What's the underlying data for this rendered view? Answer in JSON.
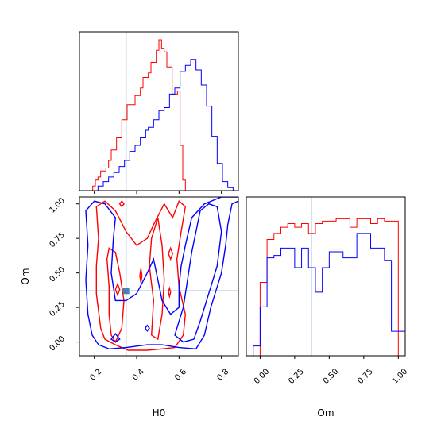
{
  "chart_data": {
    "type": "corner",
    "parameters": [
      "H0",
      "Om"
    ],
    "truths": {
      "H0": 0.35,
      "Om": 0.37
    },
    "truth_color": "#4682b4",
    "series": [
      {
        "color": "#ff0000"
      },
      {
        "color": "#0000ff"
      }
    ],
    "hist_H0": {
      "xlim": [
        0.13,
        0.88
      ],
      "xticks": [
        0.2,
        0.4,
        0.6,
        0.8
      ],
      "bin_edges": [
        0.13,
        0.1425,
        0.155,
        0.1675,
        0.18,
        0.1925,
        0.205,
        0.2175,
        0.23,
        0.2425,
        0.255,
        0.2675,
        0.28,
        0.2925,
        0.305,
        0.3175,
        0.33,
        0.3425,
        0.355,
        0.3675,
        0.38,
        0.3925,
        0.405,
        0.4175,
        0.43,
        0.4425,
        0.455,
        0.4675,
        0.48,
        0.4925,
        0.505,
        0.5175,
        0.53,
        0.5425,
        0.555,
        0.5675,
        0.58,
        0.5925,
        0.605,
        0.6175,
        0.63,
        0.6425,
        0.655,
        0.6675,
        0.68,
        0.6925,
        0.705,
        0.7175,
        0.73,
        0.7425,
        0.755,
        0.7675,
        0.78,
        0.7925,
        0.805,
        0.8175,
        0.83,
        0.8425,
        0.855,
        0.8675,
        0.88
      ],
      "red": [
        0,
        0,
        0,
        0,
        0,
        0.03,
        0.07,
        0.09,
        0.13,
        0.13,
        0.15,
        0.2,
        0.27,
        0.27,
        0.35,
        0.35,
        0.47,
        0.47,
        0.57,
        0.57,
        0.57,
        0.63,
        0.63,
        0.68,
        0.75,
        0.75,
        0.78,
        0.85,
        0.85,
        0.93,
        1.0,
        0.94,
        0.92,
        0.82,
        0.82,
        0.64,
        0.64,
        0.66,
        0.3,
        0.07,
        0,
        0,
        0,
        0,
        0,
        0,
        0,
        0,
        0,
        0,
        0,
        0,
        0,
        0,
        0,
        0,
        0,
        0,
        0,
        0
      ],
      "blue": [
        0,
        0,
        0,
        0,
        0,
        0,
        0,
        0.03,
        0.03,
        0.06,
        0.06,
        0.09,
        0.09,
        0.12,
        0.12,
        0.16,
        0.16,
        0.2,
        0.2,
        0.26,
        0.26,
        0.3,
        0.3,
        0.35,
        0.35,
        0.4,
        0.42,
        0.42,
        0.47,
        0.47,
        0.53,
        0.53,
        0.55,
        0.55,
        0.64,
        0.64,
        0.68,
        0.68,
        0.79,
        0.79,
        0.83,
        0.83,
        0.87,
        0.87,
        0.8,
        0.8,
        0.7,
        0.7,
        0.56,
        0.56,
        0.36,
        0.36,
        0.18,
        0.18,
        0.06,
        0.06,
        0.02,
        0.02,
        0,
        0
      ]
    },
    "hist_Om": {
      "xlim": [
        -0.1,
        1.05
      ],
      "xticks": [
        0.0,
        0.25,
        0.5,
        0.75,
        1.0
      ],
      "xtick_labels": [
        "0.00",
        "0.25",
        "0.50",
        "0.75",
        "1.00"
      ],
      "bin_edges": [
        -0.05,
        0.0,
        0.05,
        0.1,
        0.15,
        0.2,
        0.25,
        0.3,
        0.35,
        0.4,
        0.45,
        0.5,
        0.55,
        0.6,
        0.65,
        0.7,
        0.75,
        0.8,
        0.85,
        0.9,
        0.95,
        1.0,
        1.05
      ],
      "red": [
        0,
        0.6,
        0.95,
        1.0,
        1.05,
        1.08,
        1.05,
        1.08,
        1.0,
        1.08,
        1.1,
        1.1,
        1.12,
        1.12,
        1.05,
        1.12,
        1.12,
        1.08,
        1.12,
        1.1,
        1.1,
        0
      ],
      "blue": [
        0.08,
        0.4,
        0.8,
        0.82,
        0.88,
        0.88,
        0.72,
        0.88,
        0.72,
        0.52,
        0.72,
        0.85,
        0.85,
        0.8,
        0.8,
        1.0,
        1.0,
        0.88,
        0.88,
        0.78,
        0.2,
        0.2
      ]
    },
    "contour_panel": {
      "xlim": [
        0.13,
        0.88
      ],
      "ylim": [
        -0.1,
        1.05
      ],
      "xticks": [
        0.2,
        0.4,
        0.6,
        0.8
      ],
      "yticks": [
        0.0,
        0.25,
        0.5,
        0.75,
        1.0
      ],
      "ytick_labels": [
        "0.00",
        "0.25",
        "0.50",
        "0.75",
        "1.00"
      ],
      "red_contours": [
        [
          [
            0.21,
            0.98
          ],
          [
            0.22,
            0.75
          ],
          [
            0.21,
            0.55
          ],
          [
            0.21,
            0.35
          ],
          [
            0.23,
            0.1
          ],
          [
            0.25,
            0.02
          ],
          [
            0.3,
            -0.02
          ],
          [
            0.36,
            -0.06
          ],
          [
            0.45,
            -0.06
          ],
          [
            0.52,
            -0.05
          ],
          [
            0.58,
            -0.04
          ],
          [
            0.62,
            0.05
          ],
          [
            0.63,
            0.2
          ],
          [
            0.6,
            0.4
          ],
          [
            0.59,
            0.6
          ],
          [
            0.61,
            0.8
          ],
          [
            0.63,
            0.98
          ],
          [
            0.6,
            1.02
          ],
          [
            0.57,
            0.9
          ],
          [
            0.53,
            1.0
          ],
          [
            0.48,
            0.85
          ],
          [
            0.45,
            0.75
          ],
          [
            0.4,
            0.7
          ],
          [
            0.35,
            0.8
          ],
          [
            0.3,
            0.95
          ],
          [
            0.25,
            1.02
          ],
          [
            0.21,
            0.98
          ]
        ],
        [
          [
            0.26,
            0.6
          ],
          [
            0.27,
            0.4
          ],
          [
            0.27,
            0.2
          ],
          [
            0.28,
            0.05
          ],
          [
            0.3,
            0.0
          ],
          [
            0.33,
            0.1
          ],
          [
            0.34,
            0.3
          ],
          [
            0.32,
            0.5
          ],
          [
            0.3,
            0.65
          ],
          [
            0.27,
            0.68
          ],
          [
            0.26,
            0.6
          ]
        ],
        [
          [
            0.47,
            0.05
          ],
          [
            0.48,
            0.3
          ],
          [
            0.46,
            0.55
          ],
          [
            0.47,
            0.75
          ],
          [
            0.5,
            0.9
          ],
          [
            0.52,
            0.7
          ],
          [
            0.53,
            0.45
          ],
          [
            0.52,
            0.2
          ],
          [
            0.5,
            0.02
          ],
          [
            0.47,
            0.05
          ]
        ],
        [
          [
            0.3,
            0.38
          ],
          [
            0.31,
            0.42
          ],
          [
            0.32,
            0.38
          ],
          [
            0.31,
            0.34
          ],
          [
            0.3,
            0.38
          ]
        ],
        [
          [
            0.55,
            0.64
          ],
          [
            0.56,
            0.68
          ],
          [
            0.57,
            0.64
          ],
          [
            0.56,
            0.6
          ],
          [
            0.55,
            0.64
          ]
        ],
        [
          [
            0.55,
            0.36
          ],
          [
            0.555,
            0.39
          ],
          [
            0.56,
            0.36
          ],
          [
            0.555,
            0.33
          ],
          [
            0.55,
            0.36
          ]
        ],
        [
          [
            0.415,
            0.48
          ],
          [
            0.42,
            0.53
          ],
          [
            0.425,
            0.48
          ],
          [
            0.42,
            0.43
          ],
          [
            0.415,
            0.48
          ]
        ],
        [
          [
            0.32,
            1.0
          ],
          [
            0.33,
            1.02
          ],
          [
            0.34,
            1.0
          ],
          [
            0.33,
            0.98
          ],
          [
            0.32,
            1.0
          ]
        ]
      ],
      "blue_contours": [
        [
          [
            0.16,
            0.95
          ],
          [
            0.17,
            0.7
          ],
          [
            0.16,
            0.45
          ],
          [
            0.17,
            0.2
          ],
          [
            0.19,
            0.05
          ],
          [
            0.22,
            -0.02
          ],
          [
            0.27,
            -0.05
          ],
          [
            0.35,
            -0.04
          ],
          [
            0.45,
            -0.02
          ],
          [
            0.52,
            -0.02
          ],
          [
            0.6,
            -0.04
          ],
          [
            0.68,
            -0.05
          ],
          [
            0.72,
            0.05
          ],
          [
            0.75,
            0.25
          ],
          [
            0.8,
            0.5
          ],
          [
            0.82,
            0.7
          ],
          [
            0.83,
            0.85
          ],
          [
            0.85,
            1.0
          ],
          [
            0.88,
            1.02
          ],
          [
            0.88,
            1.05
          ],
          [
            0.8,
            1.05
          ],
          [
            0.72,
            1.0
          ],
          [
            0.66,
            0.9
          ],
          [
            0.63,
            0.7
          ],
          [
            0.61,
            0.55
          ],
          [
            0.6,
            0.4
          ],
          [
            0.6,
            0.25
          ],
          [
            0.56,
            0.2
          ],
          [
            0.52,
            0.3
          ],
          [
            0.5,
            0.45
          ],
          [
            0.48,
            0.6
          ],
          [
            0.45,
            0.5
          ],
          [
            0.4,
            0.35
          ],
          [
            0.35,
            0.3
          ],
          [
            0.3,
            0.3
          ],
          [
            0.28,
            0.5
          ],
          [
            0.29,
            0.75
          ],
          [
            0.3,
            0.9
          ],
          [
            0.25,
            1.0
          ],
          [
            0.2,
            1.02
          ],
          [
            0.16,
            0.95
          ]
        ],
        [
          [
            0.58,
            0.05
          ],
          [
            0.62,
            0.25
          ],
          [
            0.64,
            0.45
          ],
          [
            0.66,
            0.65
          ],
          [
            0.68,
            0.8
          ],
          [
            0.7,
            0.95
          ],
          [
            0.74,
            1.0
          ],
          [
            0.78,
            0.98
          ],
          [
            0.8,
            0.8
          ],
          [
            0.78,
            0.55
          ],
          [
            0.74,
            0.35
          ],
          [
            0.7,
            0.15
          ],
          [
            0.67,
            0.02
          ],
          [
            0.62,
            0.0
          ],
          [
            0.58,
            0.05
          ]
        ],
        [
          [
            0.44,
            0.1
          ],
          [
            0.45,
            0.12
          ],
          [
            0.46,
            0.1
          ],
          [
            0.45,
            0.08
          ],
          [
            0.44,
            0.1
          ]
        ],
        [
          [
            0.28,
            0.02
          ],
          [
            0.3,
            0.06
          ],
          [
            0.32,
            0.02
          ],
          [
            0.3,
            0.0
          ],
          [
            0.28,
            0.02
          ]
        ]
      ]
    }
  }
}
